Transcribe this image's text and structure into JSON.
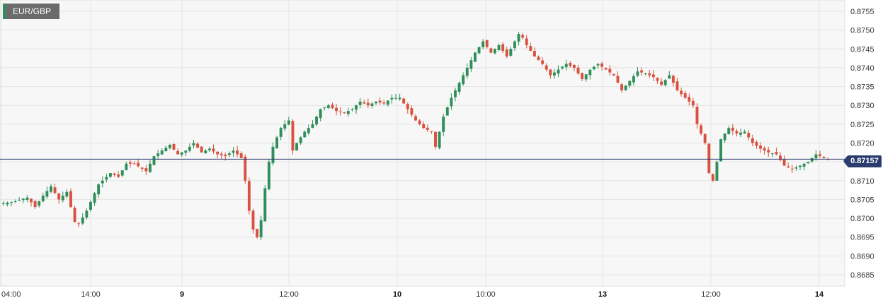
{
  "symbol": "EUR/GBP",
  "current_price_label": "0.87157",
  "colors": {
    "up": "#2f8f5a",
    "down": "#d9523f",
    "price_line": "#2a3b6e",
    "grid": "#e4e4e4",
    "plot_bg": "#f7f7f7"
  },
  "chart_data": {
    "type": "candlestick",
    "title": "",
    "xlabel": "",
    "ylabel": "",
    "ylim": [
      0.8682,
      0.8758
    ],
    "y_ticks": [
      "0.8755",
      "0.8750",
      "0.8745",
      "0.8740",
      "0.8735",
      "0.8730",
      "0.8725",
      "0.8720",
      "0.8715",
      "0.8710",
      "0.8705",
      "0.8700",
      "0.8695",
      "0.8690",
      "0.8685"
    ],
    "x_ticks": [
      {
        "label": "04:00",
        "bold": false
      },
      {
        "label": "14:00",
        "bold": false
      },
      {
        "label": "9",
        "bold": true
      },
      {
        "label": "12:00",
        "bold": false
      },
      {
        "label": "10",
        "bold": true
      },
      {
        "label": "10:00",
        "bold": false
      },
      {
        "label": "13",
        "bold": true
      },
      {
        "label": "12:00",
        "bold": false
      },
      {
        "label": "14",
        "bold": true
      }
    ],
    "current_price": 0.87157,
    "grid": true,
    "close_path": [
      [
        0,
        0.8704
      ],
      [
        3,
        0.87045
      ],
      [
        6,
        0.87055
      ],
      [
        8,
        0.8703
      ],
      [
        10,
        0.8706
      ],
      [
        12,
        0.87085
      ],
      [
        14,
        0.8705
      ],
      [
        16,
        0.8707
      ],
      [
        18,
        0.8699
      ],
      [
        19,
        0.86985
      ],
      [
        21,
        0.8702
      ],
      [
        24,
        0.8709
      ],
      [
        27,
        0.8712
      ],
      [
        29,
        0.8711
      ],
      [
        31,
        0.87145
      ],
      [
        33,
        0.87145
      ],
      [
        36,
        0.87125
      ],
      [
        38,
        0.87165
      ],
      [
        40,
        0.8718
      ],
      [
        42,
        0.87195
      ],
      [
        44,
        0.8717
      ],
      [
        46,
        0.8718
      ],
      [
        48,
        0.872
      ],
      [
        50,
        0.87175
      ],
      [
        52,
        0.87185
      ],
      [
        54,
        0.8717
      ],
      [
        56,
        0.87165
      ],
      [
        58,
        0.8718
      ],
      [
        60,
        0.8716
      ],
      [
        61,
        0.871
      ],
      [
        62,
        0.8702
      ],
      [
        63,
        0.8697
      ],
      [
        64,
        0.8695
      ],
      [
        65,
        0.86995
      ],
      [
        66,
        0.8708
      ],
      [
        67,
        0.8715
      ],
      [
        68,
        0.8719
      ],
      [
        70,
        0.8724
      ],
      [
        72,
        0.8726
      ],
      [
        73,
        0.8718
      ],
      [
        74,
        0.872
      ],
      [
        76,
        0.8723
      ],
      [
        78,
        0.8725
      ],
      [
        80,
        0.8729
      ],
      [
        82,
        0.873
      ],
      [
        84,
        0.87285
      ],
      [
        86,
        0.8728
      ],
      [
        88,
        0.8729
      ],
      [
        90,
        0.8731
      ],
      [
        92,
        0.873
      ],
      [
        94,
        0.8731
      ],
      [
        96,
        0.87305
      ],
      [
        98,
        0.8732
      ],
      [
        100,
        0.8732
      ],
      [
        102,
        0.8729
      ],
      [
        104,
        0.8726
      ],
      [
        106,
        0.8724
      ],
      [
        108,
        0.8723
      ],
      [
        109,
        0.8719
      ],
      [
        110,
        0.8723
      ],
      [
        111,
        0.8727
      ],
      [
        113,
        0.8732
      ],
      [
        115,
        0.8736
      ],
      [
        117,
        0.874
      ],
      [
        119,
        0.8744
      ],
      [
        121,
        0.8747
      ],
      [
        123,
        0.8744
      ],
      [
        125,
        0.8746
      ],
      [
        127,
        0.8743
      ],
      [
        129,
        0.8747
      ],
      [
        130,
        0.8749
      ],
      [
        131,
        0.8748
      ],
      [
        132,
        0.8746
      ],
      [
        134,
        0.8743
      ],
      [
        136,
        0.8741
      ],
      [
        138,
        0.8738
      ],
      [
        140,
        0.87395
      ],
      [
        142,
        0.8741
      ],
      [
        144,
        0.874
      ],
      [
        146,
        0.8737
      ],
      [
        148,
        0.87395
      ],
      [
        150,
        0.8741
      ],
      [
        152,
        0.87395
      ],
      [
        154,
        0.8738
      ],
      [
        156,
        0.8734
      ],
      [
        158,
        0.87365
      ],
      [
        160,
        0.8739
      ],
      [
        162,
        0.87385
      ],
      [
        164,
        0.87375
      ],
      [
        166,
        0.87355
      ],
      [
        168,
        0.8738
      ],
      [
        170,
        0.8734
      ],
      [
        172,
        0.8732
      ],
      [
        174,
        0.873
      ],
      [
        175,
        0.8725
      ],
      [
        177,
        0.872
      ],
      [
        178,
        0.8712
      ],
      [
        179,
        0.871
      ],
      [
        180,
        0.8715
      ],
      [
        181,
        0.8721
      ],
      [
        183,
        0.8724
      ],
      [
        185,
        0.87225
      ],
      [
        187,
        0.8723
      ],
      [
        189,
        0.872
      ],
      [
        191,
        0.87185
      ],
      [
        193,
        0.87175
      ],
      [
        195,
        0.8717
      ],
      [
        197,
        0.8714
      ],
      [
        199,
        0.8713
      ],
      [
        201,
        0.8714
      ],
      [
        203,
        0.8715
      ],
      [
        205,
        0.8717
      ],
      [
        207,
        0.8716
      ],
      [
        208,
        0.87157
      ]
    ]
  }
}
